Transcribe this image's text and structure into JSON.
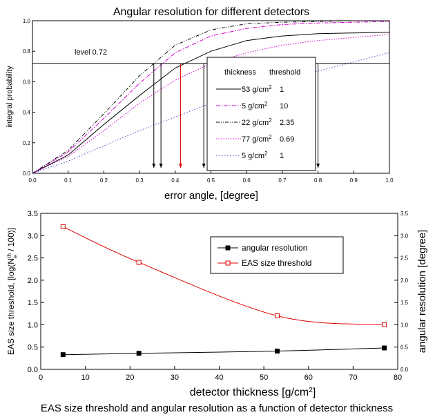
{
  "chart_data": [
    {
      "type": "line",
      "title": "Angular resolution for different detectors",
      "xlabel": "error angle, [degree]",
      "ylabel": "integral probability",
      "xlim": [
        0,
        1.0
      ],
      "ylim": [
        0,
        1.0
      ],
      "xticks": [
        "0.0",
        "0.1",
        "0.2",
        "0.3",
        "0.4",
        "0.5",
        "0.6",
        "0.7",
        "0.8",
        "0.9",
        "1.0"
      ],
      "yticks": [
        "0.0",
        "0.2",
        "0.4",
        "0.6",
        "0.8",
        "1.0"
      ],
      "level_label": "level 0.72",
      "level": 0.72,
      "legend": {
        "header_thickness": "thickness",
        "header_threshold": "threshold",
        "placement": "center-right"
      },
      "series": [
        {
          "thickness": "53 g/cm",
          "sup": "2",
          "threshold": "1",
          "color": "#000000",
          "dash": "",
          "x": [
            0,
            0.1,
            0.2,
            0.3,
            0.4,
            0.5,
            0.6,
            0.7,
            0.8,
            0.9,
            1.0
          ],
          "y": [
            0,
            0.12,
            0.32,
            0.51,
            0.69,
            0.8,
            0.87,
            0.9,
            0.915,
            0.92,
            0.925
          ]
        },
        {
          "thickness": "5 g/cm",
          "sup": "2",
          "threshold": "10",
          "color": "#cc00cc",
          "dash": "6 2 1.5 2",
          "x": [
            0,
            0.1,
            0.2,
            0.3,
            0.4,
            0.5,
            0.6,
            0.7,
            0.8,
            0.9,
            1.0
          ],
          "y": [
            0,
            0.14,
            0.36,
            0.59,
            0.79,
            0.9,
            0.95,
            0.975,
            0.985,
            0.99,
            0.995
          ]
        },
        {
          "thickness": "22 g/cm",
          "sup": "2",
          "threshold": "2.35",
          "color": "#000000",
          "dash": "5 2 1 2 1 2",
          "x": [
            0,
            0.1,
            0.2,
            0.3,
            0.4,
            0.5,
            0.6,
            0.7,
            0.8,
            0.9,
            1.0
          ],
          "y": [
            0,
            0.15,
            0.39,
            0.64,
            0.84,
            0.94,
            0.98,
            0.99,
            0.995,
            1.0,
            1.0
          ]
        },
        {
          "thickness": "77 g/cm",
          "sup": "2",
          "threshold": "0.69",
          "color": "#cc00cc",
          "dash": "1.5 2",
          "x": [
            0,
            0.1,
            0.2,
            0.3,
            0.4,
            0.5,
            0.6,
            0.7,
            0.8,
            0.9,
            1.0
          ],
          "y": [
            0,
            0.11,
            0.28,
            0.46,
            0.61,
            0.72,
            0.79,
            0.84,
            0.87,
            0.89,
            0.91
          ]
        },
        {
          "thickness": "5 g/cm",
          "sup": "2",
          "threshold": "1",
          "color": "#4444cc",
          "dash": "1.5 2.5",
          "x": [
            0,
            0.1,
            0.2,
            0.3,
            0.4,
            0.5,
            0.6,
            0.7,
            0.8,
            0.9,
            1.0
          ],
          "y": [
            0,
            0.08,
            0.18,
            0.28,
            0.37,
            0.46,
            0.54,
            0.61,
            0.67,
            0.73,
            0.79
          ]
        }
      ],
      "arrows": [
        {
          "x": 0.34,
          "color": "#000000"
        },
        {
          "x": 0.36,
          "color": "#000000"
        },
        {
          "x": 0.415,
          "color": "#dd0000"
        },
        {
          "x": 0.48,
          "color": "#000000"
        },
        {
          "x": 0.8,
          "color": "#000000"
        }
      ]
    },
    {
      "type": "line",
      "title": "",
      "xlabel": "detector thickness [g/cm",
      "xlabel_sup": "2",
      "xlabel_end": "]",
      "ylabel_left_a": "EAS size threshold, [log(N",
      "ylabel_left_sub": "e",
      "ylabel_left_sup": "th",
      "ylabel_left_b": "/ 100)]",
      "ylabel_right": "angular resolution [degree]",
      "xlim": [
        0,
        80
      ],
      "ylim_left": [
        0,
        3.5
      ],
      "ylim_right": [
        0,
        3.5
      ],
      "xticks": [
        "0",
        "10",
        "20",
        "30",
        "40",
        "50",
        "60",
        "70",
        "80"
      ],
      "yticks_left": [
        "0.0",
        "0.5",
        "1.0",
        "1.5",
        "2.0",
        "2.5",
        "3.0",
        "3.5"
      ],
      "yticks_right": [
        "0.0",
        "0.5",
        "1.0",
        "1.5",
        "2.0",
        "2.5",
        "3.0",
        "3.5"
      ],
      "legend_placement": "top-right",
      "series": [
        {
          "name": "angular resolution",
          "color": "#000000",
          "marker": "filled-square",
          "x": [
            5,
            22,
            53,
            77
          ],
          "y": [
            0.33,
            0.36,
            0.41,
            0.48
          ]
        },
        {
          "name": "EAS size threshold",
          "color": "#dd0000",
          "marker": "open-square",
          "x": [
            5,
            22,
            53,
            77
          ],
          "y": [
            3.2,
            2.4,
            1.2,
            1.0
          ]
        }
      ]
    }
  ],
  "caption": "EAS size threshold and angular resolution as a function of detector thickness"
}
